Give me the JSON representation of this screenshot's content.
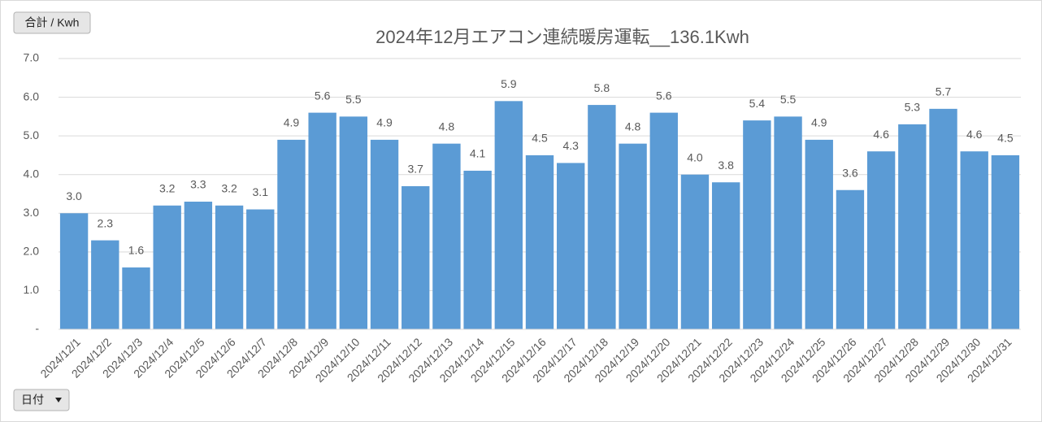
{
  "chart_data": {
    "type": "bar",
    "title": "2024年12月エアコン連続暖房運転__136.1Kwh",
    "value_field_button": "合計 / Kwh",
    "axis_field_button": "日付",
    "categories": [
      "2024/12/1",
      "2024/12/2",
      "2024/12/3",
      "2024/12/4",
      "2024/12/5",
      "2024/12/6",
      "2024/12/7",
      "2024/12/8",
      "2024/12/9",
      "2024/12/10",
      "2024/12/11",
      "2024/12/12",
      "2024/12/13",
      "2024/12/14",
      "2024/12/15",
      "2024/12/16",
      "2024/12/17",
      "2024/12/18",
      "2024/12/19",
      "2024/12/20",
      "2024/12/21",
      "2024/12/22",
      "2024/12/23",
      "2024/12/24",
      "2024/12/25",
      "2024/12/26",
      "2024/12/27",
      "2024/12/28",
      "2024/12/29",
      "2024/12/30",
      "2024/12/31"
    ],
    "values": [
      3.0,
      2.3,
      1.6,
      3.2,
      3.3,
      3.2,
      3.1,
      4.9,
      5.6,
      5.5,
      4.9,
      3.7,
      4.8,
      4.1,
      5.9,
      4.5,
      4.3,
      5.8,
      4.8,
      5.6,
      4.0,
      3.8,
      5.4,
      5.5,
      4.9,
      3.6,
      4.6,
      5.3,
      5.7,
      4.6,
      4.5
    ],
    "value_labels": [
      "3.0",
      "2.3",
      "1.6",
      "3.2",
      "3.3",
      "3.2",
      "3.1",
      "4.9",
      "5.6",
      "5.5",
      "4.9",
      "3.7",
      "4.8",
      "4.1",
      "5.9",
      "4.5",
      "4.3",
      "5.8",
      "4.8",
      "5.6",
      "4.0",
      "3.8",
      "5.4",
      "5.5",
      "4.9",
      "3.6",
      "4.6",
      "5.3",
      "5.7",
      "4.6",
      "4.5"
    ],
    "color": "#5b9bd5",
    "ylim": [
      0,
      7
    ],
    "yticks": [
      {
        "value": 0,
        "label": "-"
      },
      {
        "value": 1,
        "label": "1.0"
      },
      {
        "value": 2,
        "label": "2.0"
      },
      {
        "value": 3,
        "label": "3.0"
      },
      {
        "value": 4,
        "label": "4.0"
      },
      {
        "value": 5,
        "label": "5.0"
      },
      {
        "value": 6,
        "label": "6.0"
      },
      {
        "value": 7,
        "label": "7.0"
      }
    ],
    "grid": true
  }
}
